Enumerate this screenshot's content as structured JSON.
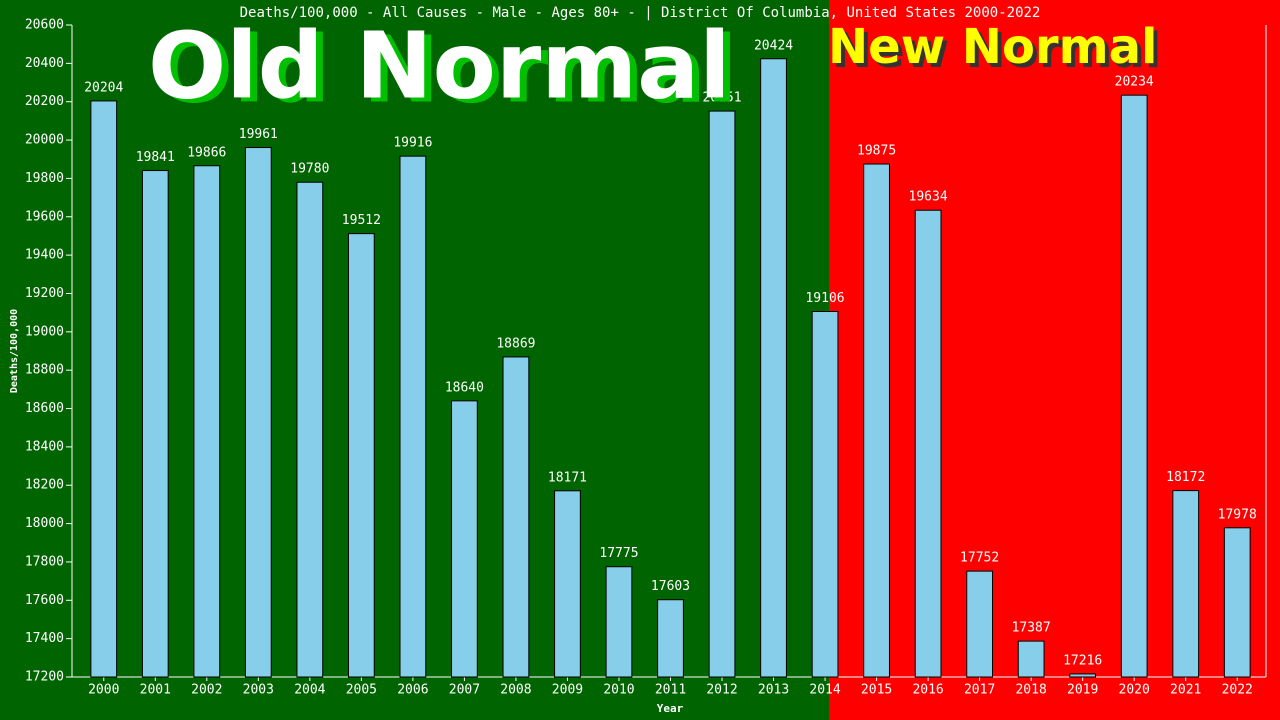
{
  "chart_data": {
    "type": "bar",
    "title": "Deaths/100,000 - All Causes - Male - Ages 80+ -  | District Of Columbia, United States 2000-2022",
    "y_label": "Deaths/100,000",
    "x_label": "Year",
    "annotations": [
      "Old Normal",
      "New Normal"
    ],
    "categories": [
      "2000",
      "2001",
      "2002",
      "2003",
      "2004",
      "2005",
      "2006",
      "2007",
      "2008",
      "2009",
      "2010",
      "2011",
      "2012",
      "2013",
      "2014",
      "2015",
      "2016",
      "2017",
      "2018",
      "2019",
      "2020",
      "2021",
      "2022"
    ],
    "values": [
      20204,
      19841,
      19866,
      19961,
      19780,
      19512,
      19916,
      18640,
      18869,
      18171,
      17775,
      17603,
      20151,
      20424,
      19106,
      19875,
      19634,
      17752,
      17387,
      17216,
      20234,
      18172,
      17978
    ],
    "color": "#87ceeb",
    "ylim": [
      17200,
      20600
    ],
    "yticks": [
      17200,
      17400,
      17600,
      17800,
      18000,
      18200,
      18400,
      18600,
      18800,
      19000,
      19200,
      19400,
      19600,
      19800,
      20000,
      20200,
      20400,
      20600
    ]
  }
}
